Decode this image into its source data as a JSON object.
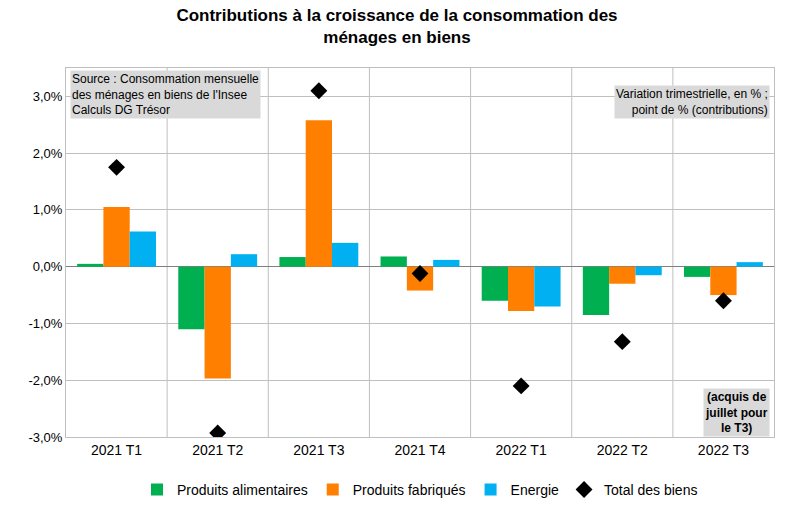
{
  "chart_data": {
    "type": "bar",
    "title": [
      "Contributions à la croissance de la consommation des",
      "ménages en biens"
    ],
    "categories": [
      "2021 T1",
      "2021 T2",
      "2021 T3",
      "2021 T4",
      "2022 T1",
      "2022 T2",
      "2022 T3"
    ],
    "series": [
      {
        "name": "Produits alimentaires",
        "color": "#00b050",
        "type": "bar",
        "values": [
          0.05,
          -1.1,
          0.17,
          0.18,
          -0.6,
          -0.85,
          -0.18
        ]
      },
      {
        "name": "Produits fabriqués",
        "color": "#ff7f00",
        "type": "bar",
        "values": [
          1.05,
          -1.97,
          2.58,
          -0.42,
          -0.78,
          -0.3,
          -0.5
        ]
      },
      {
        "name": "Energie",
        "color": "#00b0f0",
        "type": "bar",
        "values": [
          0.62,
          0.22,
          0.42,
          0.12,
          -0.7,
          -0.15,
          0.08
        ]
      },
      {
        "name": "Total des biens",
        "color": "#000000",
        "type": "scatter",
        "marker": "diamond",
        "values": [
          1.75,
          -2.93,
          3.1,
          -0.12,
          -2.1,
          -1.32,
          -0.6
        ]
      }
    ],
    "ylim": [
      -3,
      3.5
    ],
    "yticks": [
      {
        "value": -3,
        "label": "-3,0%"
      },
      {
        "value": -2,
        "label": "-2,0%"
      },
      {
        "value": -1,
        "label": "-1,0%"
      },
      {
        "value": 0,
        "label": "0,0%"
      },
      {
        "value": 1,
        "label": "1,0%"
      },
      {
        "value": 2,
        "label": "2,0%"
      },
      {
        "value": 3,
        "label": "3,0%"
      }
    ],
    "grid": true,
    "legend": "bottom",
    "annotations": [
      {
        "lines": [
          "Source : Consommation mensuelle",
          "des ménages en biens de l'Insee",
          "Calculs DG Trésor"
        ]
      },
      {
        "lines": [
          "Variation trimestrielle, en % ;",
          "point de % (contributions)"
        ]
      },
      {
        "lines": [
          "(acquis de",
          "juillet pour",
          "le T3)"
        ]
      }
    ]
  }
}
